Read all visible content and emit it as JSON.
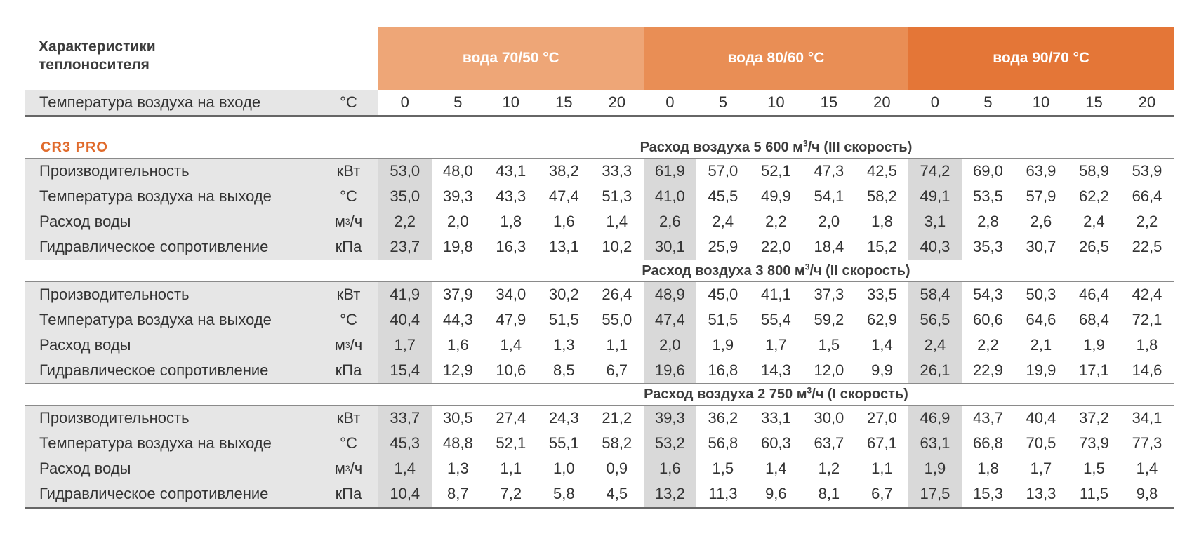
{
  "header": {
    "title_line1": "Характеристики",
    "title_line2": "теплоносителя",
    "bands": [
      {
        "label": "вода 70/50 °C",
        "color": "#eea677"
      },
      {
        "label": "вода 80/60 °C",
        "color": "#e98e55"
      },
      {
        "label": "вода 90/70 °C",
        "color": "#e47637"
      }
    ]
  },
  "temp_row": {
    "label": "Температура воздуха на входе",
    "unit": "°C",
    "values": [
      "0",
      "5",
      "10",
      "15",
      "20",
      "0",
      "5",
      "10",
      "15",
      "20",
      "0",
      "5",
      "10",
      "15",
      "20"
    ]
  },
  "model": "CR3 PRO",
  "sections": [
    {
      "title_pre": "Расход воздуха 5 600 м",
      "title_sup": "3",
      "title_post": "/ч (III скорость)",
      "rows": [
        {
          "label": "Производительность",
          "unit_pre": "кВт",
          "unit_sup": "",
          "unit_post": "",
          "values": [
            "53,0",
            "48,0",
            "43,1",
            "38,2",
            "33,3",
            "61,9",
            "57,0",
            "52,1",
            "47,3",
            "42,5",
            "74,2",
            "69,0",
            "63,9",
            "58,9",
            "53,9"
          ]
        },
        {
          "label": "Температура воздуха на выходе",
          "unit_pre": "°C",
          "unit_sup": "",
          "unit_post": "",
          "values": [
            "35,0",
            "39,3",
            "43,3",
            "47,4",
            "51,3",
            "41,0",
            "45,5",
            "49,9",
            "54,1",
            "58,2",
            "49,1",
            "53,5",
            "57,9",
            "62,2",
            "66,4"
          ]
        },
        {
          "label": "Расход воды",
          "unit_pre": "м",
          "unit_sup": "3",
          "unit_post": "/ч",
          "values": [
            "2,2",
            "2,0",
            "1,8",
            "1,6",
            "1,4",
            "2,6",
            "2,4",
            "2,2",
            "2,0",
            "1,8",
            "3,1",
            "2,8",
            "2,6",
            "2,4",
            "2,2"
          ]
        },
        {
          "label": "Гидравлическое сопротивление",
          "unit_pre": "кПа",
          "unit_sup": "",
          "unit_post": "",
          "values": [
            "23,7",
            "19,8",
            "16,3",
            "13,1",
            "10,2",
            "30,1",
            "25,9",
            "22,0",
            "18,4",
            "15,2",
            "40,3",
            "35,3",
            "30,7",
            "26,5",
            "22,5"
          ]
        }
      ]
    },
    {
      "title_pre": "Расход воздуха 3 800 м",
      "title_sup": "3",
      "title_post": "/ч (II скорость)",
      "rows": [
        {
          "label": "Производительность",
          "unit_pre": "кВт",
          "unit_sup": "",
          "unit_post": "",
          "values": [
            "41,9",
            "37,9",
            "34,0",
            "30,2",
            "26,4",
            "48,9",
            "45,0",
            "41,1",
            "37,3",
            "33,5",
            "58,4",
            "54,3",
            "50,3",
            "46,4",
            "42,4"
          ]
        },
        {
          "label": "Температура воздуха на выходе",
          "unit_pre": "°C",
          "unit_sup": "",
          "unit_post": "",
          "values": [
            "40,4",
            "44,3",
            "47,9",
            "51,5",
            "55,0",
            "47,4",
            "51,5",
            "55,4",
            "59,2",
            "62,9",
            "56,5",
            "60,6",
            "64,6",
            "68,4",
            "72,1"
          ]
        },
        {
          "label": "Расход воды",
          "unit_pre": "м",
          "unit_sup": "3",
          "unit_post": "/ч",
          "values": [
            "1,7",
            "1,6",
            "1,4",
            "1,3",
            "1,1",
            "2,0",
            "1,9",
            "1,7",
            "1,5",
            "1,4",
            "2,4",
            "2,2",
            "2,1",
            "1,9",
            "1,8"
          ]
        },
        {
          "label": "Гидравлическое сопротивление",
          "unit_pre": "кПа",
          "unit_sup": "",
          "unit_post": "",
          "values": [
            "15,4",
            "12,9",
            "10,6",
            "8,5",
            "6,7",
            "19,6",
            "16,8",
            "14,3",
            "12,0",
            "9,9",
            "26,1",
            "22,9",
            "19,9",
            "17,1",
            "14,6"
          ]
        }
      ]
    },
    {
      "title_pre": "Расход воздуха 2 750 м",
      "title_sup": "3",
      "title_post": "/ч (I скорость)",
      "rows": [
        {
          "label": "Производительность",
          "unit_pre": "кВт",
          "unit_sup": "",
          "unit_post": "",
          "values": [
            "33,7",
            "30,5",
            "27,4",
            "24,3",
            "21,2",
            "39,3",
            "36,2",
            "33,1",
            "30,0",
            "27,0",
            "46,9",
            "43,7",
            "40,4",
            "37,2",
            "34,1"
          ]
        },
        {
          "label": "Температура воздуха на выходе",
          "unit_pre": "°C",
          "unit_sup": "",
          "unit_post": "",
          "values": [
            "45,3",
            "48,8",
            "52,1",
            "55,1",
            "58,2",
            "53,2",
            "56,8",
            "60,3",
            "63,7",
            "67,1",
            "63,1",
            "66,8",
            "70,5",
            "73,9",
            "77,3"
          ]
        },
        {
          "label": "Расход воды",
          "unit_pre": "м",
          "unit_sup": "3",
          "unit_post": "/ч",
          "values": [
            "1,4",
            "1,3",
            "1,1",
            "1,0",
            "0,9",
            "1,6",
            "1,5",
            "1,4",
            "1,2",
            "1,1",
            "1,9",
            "1,8",
            "1,7",
            "1,5",
            "1,4"
          ]
        },
        {
          "label": "Гидравлическое сопротивление",
          "unit_pre": "кПа",
          "unit_sup": "",
          "unit_post": "",
          "values": [
            "10,4",
            "8,7",
            "7,2",
            "5,8",
            "4,5",
            "13,2",
            "11,3",
            "9,6",
            "8,1",
            "6,7",
            "17,5",
            "15,3",
            "13,3",
            "11,5",
            "9,8"
          ]
        }
      ]
    }
  ]
}
